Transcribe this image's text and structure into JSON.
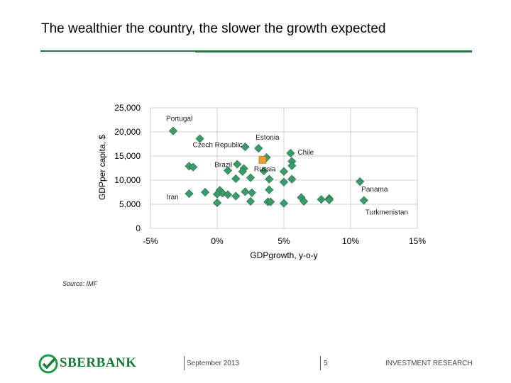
{
  "slide": {
    "title": "The wealthier the country, the slower the growth expected",
    "source": "Source: IMF"
  },
  "footer": {
    "brand": "SBERBANK",
    "date": "September 2013",
    "page": "5",
    "section": "INVESTMENT RESEARCH"
  },
  "colors": {
    "accent": "#1f7a3a",
    "marker": "#3a9a6a",
    "highlight": "#f0a030"
  },
  "chart_data": {
    "type": "scatter",
    "title": "",
    "xlabel": "GDPgrowth, y-o-y",
    "ylabel": "GDPper capita, $",
    "xlim": [
      -5,
      15
    ],
    "ylim": [
      0,
      25000
    ],
    "xticks": [
      -5,
      0,
      5,
      10,
      15
    ],
    "xtick_labels": [
      "-5%",
      "0%",
      "5%",
      "10%",
      "15%"
    ],
    "yticks": [
      0,
      5000,
      10000,
      15000,
      20000,
      25000
    ],
    "ytick_labels": [
      "0",
      "5,000",
      "10,000",
      "15,000",
      "20,000",
      "25,000"
    ],
    "grid": true,
    "series": [
      {
        "points": [
          {
            "x": -3.3,
            "y": 20200,
            "label": "Portugal"
          },
          {
            "x": -1.3,
            "y": 18600,
            "label": "Czech Republic"
          },
          {
            "x": 3.1,
            "y": 16600,
            "label": "Estonia"
          },
          {
            "x": 5.5,
            "y": 15600,
            "label": "Chile"
          },
          {
            "x": 1.5,
            "y": 13300,
            "label": "Brazil"
          },
          {
            "x": 10.7,
            "y": 9700,
            "label": "Panama"
          },
          {
            "x": -2.1,
            "y": 7200,
            "label": "Iran"
          },
          {
            "x": 11.0,
            "y": 5800,
            "label": "Turkmenistan"
          },
          {
            "x": 2.1,
            "y": 16900
          },
          {
            "x": 3.7,
            "y": 14700
          },
          {
            "x": 5.6,
            "y": 13900
          },
          {
            "x": 5.6,
            "y": 13000
          },
          {
            "x": -2.1,
            "y": 12900
          },
          {
            "x": -1.8,
            "y": 12700
          },
          {
            "x": 2.0,
            "y": 12400
          },
          {
            "x": 0.8,
            "y": 12000
          },
          {
            "x": 1.9,
            "y": 11800
          },
          {
            "x": 3.5,
            "y": 11900
          },
          {
            "x": 5.0,
            "y": 11800
          },
          {
            "x": 1.4,
            "y": 10300
          },
          {
            "x": 2.5,
            "y": 10500
          },
          {
            "x": 3.9,
            "y": 10200
          },
          {
            "x": 5.6,
            "y": 10200
          },
          {
            "x": 5.0,
            "y": 9600
          },
          {
            "x": 3.9,
            "y": 8000
          },
          {
            "x": -0.9,
            "y": 7500
          },
          {
            "x": 0.2,
            "y": 7900
          },
          {
            "x": 0.4,
            "y": 7300
          },
          {
            "x": 0.8,
            "y": 7000
          },
          {
            "x": 1.4,
            "y": 6700
          },
          {
            "x": 2.1,
            "y": 7600
          },
          {
            "x": 2.6,
            "y": 7400
          },
          {
            "x": 0.0,
            "y": 7100
          },
          {
            "x": 0.0,
            "y": 5300
          },
          {
            "x": 2.5,
            "y": 5600
          },
          {
            "x": 3.8,
            "y": 5500
          },
          {
            "x": 4.0,
            "y": 5500
          },
          {
            "x": 5.0,
            "y": 5200
          },
          {
            "x": 6.3,
            "y": 6400
          },
          {
            "x": 6.5,
            "y": 5600
          },
          {
            "x": 7.8,
            "y": 6000
          },
          {
            "x": 8.4,
            "y": 6200
          },
          {
            "x": 8.4,
            "y": 5900
          }
        ]
      },
      {
        "highlight": true,
        "points": [
          {
            "x": 3.4,
            "y": 14200,
            "label": "Russia"
          }
        ]
      }
    ]
  }
}
